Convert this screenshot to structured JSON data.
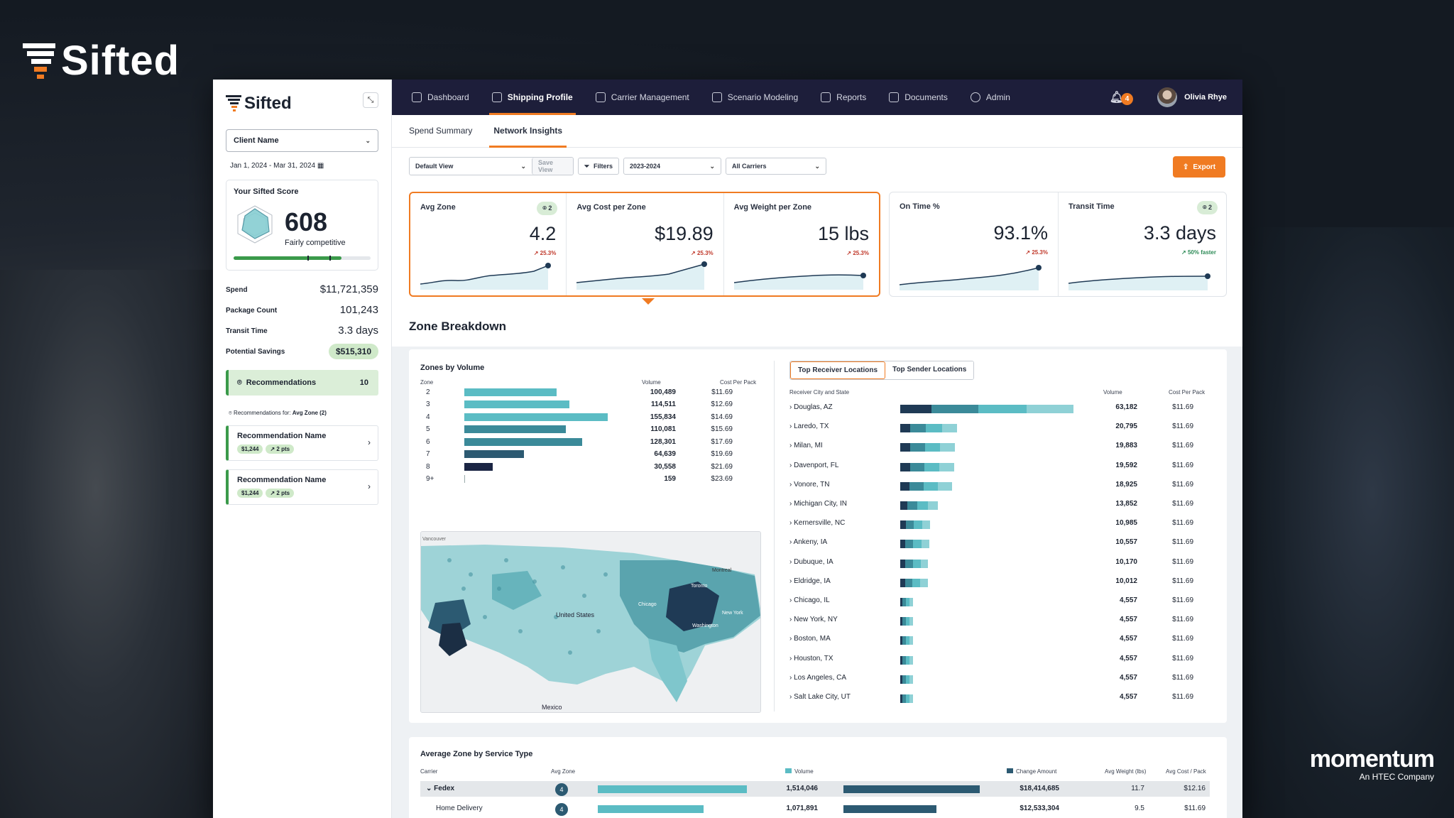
{
  "brand": {
    "name": "Sifted",
    "partner": "momentum",
    "partner_sub": "An HTEC Company"
  },
  "nav": {
    "items": [
      {
        "label": "Dashboard",
        "icon": "grid-icon"
      },
      {
        "label": "Shipping Profile",
        "icon": "bar-chart-icon",
        "active": true
      },
      {
        "label": "Carrier Management",
        "icon": "truck-icon"
      },
      {
        "label": "Scenario Modeling",
        "icon": "cube-icon"
      },
      {
        "label": "Reports",
        "icon": "report-icon"
      },
      {
        "label": "Documents",
        "icon": "document-icon"
      },
      {
        "label": "Admin",
        "icon": "user-icon"
      }
    ],
    "notifications": "4",
    "user": "Olivia Rhye"
  },
  "subtabs": [
    "Spend Summary",
    "Network Insights"
  ],
  "filters": {
    "view": "Default View",
    "save": "Save View",
    "filters": "Filters",
    "period": "2023-2024",
    "carriers": "All Carriers",
    "export": "Export"
  },
  "kpis": [
    {
      "title": "Avg Zone",
      "value": "4.2",
      "delta": "25.3%",
      "pin": "2"
    },
    {
      "title": "Avg Cost per Zone",
      "value": "$19.89",
      "delta": "25.3%"
    },
    {
      "title": "Avg Weight per Zone",
      "value": "15 lbs",
      "delta": "25.3%"
    },
    {
      "title": "On Time %",
      "value": "93.1%",
      "delta": "25.3%"
    },
    {
      "title": "Transit Time",
      "value": "3.3 days",
      "delta": "50% faster",
      "pin": "2"
    }
  ],
  "sidebar": {
    "client": "Client Name",
    "date_range": "Jan 1, 2024 - Mar 31, 2024",
    "score_title": "Your Sifted Score",
    "score": "608",
    "score_label": "Fairly competitive",
    "score_level": 0.79,
    "stats": [
      {
        "label": "Spend",
        "value": "$11,721,359"
      },
      {
        "label": "Package Count",
        "value": "101,243"
      },
      {
        "label": "Transit Time",
        "value": "3.3 days"
      },
      {
        "label": "Potential Savings",
        "value": "$515,310"
      }
    ],
    "recommendations_label": "Recommendations",
    "recommendations_count": "10",
    "rec_for_prefix": "Recommendations for:",
    "rec_for_value": "Avg Zone (2)",
    "rec_cards": [
      {
        "name": "Recommendation Name",
        "amount": "$1,244",
        "pts": "2 pts"
      },
      {
        "name": "Recommendation Name",
        "amount": "$1,244",
        "pts": "2 pts"
      }
    ]
  },
  "zone_breakdown": {
    "title": "Zone Breakdown",
    "zones_title": "Zones by Volume",
    "col_zone": "Zone",
    "col_volume": "Volume",
    "col_cost": "Cost Per Pack",
    "rows": [
      {
        "zone": "2",
        "volume": "100,489",
        "cost": "$11.69",
        "v": 100489
      },
      {
        "zone": "3",
        "volume": "114,511",
        "cost": "$12.69",
        "v": 114511
      },
      {
        "zone": "4",
        "volume": "155,834",
        "cost": "$14.69",
        "v": 155834
      },
      {
        "zone": "5",
        "volume": "110,081",
        "cost": "$15.69",
        "v": 110081
      },
      {
        "zone": "6",
        "volume": "128,301",
        "cost": "$17.69",
        "v": 128301
      },
      {
        "zone": "7",
        "volume": "64,639",
        "cost": "$19.69",
        "v": 64639
      },
      {
        "zone": "8",
        "volume": "30,558",
        "cost": "$21.69",
        "v": 30558
      },
      {
        "zone": "9+",
        "volume": "159",
        "cost": "$23.69",
        "v": 159
      }
    ],
    "map_labels": [
      "United States",
      "Mexico",
      "Vancouver",
      "Montreal",
      "Toronto",
      "New York",
      "Washington",
      "Chicago"
    ],
    "loc_tabs": [
      "Top Receiver Locations",
      "Top Sender Locations"
    ],
    "col_city": "Receiver City and State",
    "col_volume2": "Volume",
    "col_cost2": "Cost Per Pack",
    "locations": [
      {
        "city": "Douglas, AZ",
        "volume": "63,182",
        "v": 63182
      },
      {
        "city": "Laredo, TX",
        "volume": "20,795",
        "v": 20795
      },
      {
        "city": "Milan, MI",
        "volume": "19,883",
        "v": 19883
      },
      {
        "city": "Davenport, FL",
        "volume": "19,592",
        "v": 19592
      },
      {
        "city": "Vonore, TN",
        "volume": "18,925",
        "v": 18925
      },
      {
        "city": "Michigan City, IN",
        "volume": "13,852",
        "v": 13852
      },
      {
        "city": "Kernersville, NC",
        "volume": "10,985",
        "v": 10985
      },
      {
        "city": "Ankeny, IA",
        "volume": "10,557",
        "v": 10557
      },
      {
        "city": "Dubuque, IA",
        "volume": "10,170",
        "v": 10170
      },
      {
        "city": "Eldridge, IA",
        "volume": "10,012",
        "v": 10012
      },
      {
        "city": "Chicago, IL",
        "volume": "4,557",
        "v": 4557
      },
      {
        "city": "New York, NY",
        "volume": "4,557",
        "v": 4557
      },
      {
        "city": "Boston, MA",
        "volume": "4,557",
        "v": 4557
      },
      {
        "city": "Houston, TX",
        "volume": "4,557",
        "v": 4557
      },
      {
        "city": "Los Angeles, CA",
        "volume": "4,557",
        "v": 4557
      },
      {
        "city": "Salt Lake City, UT",
        "volume": "4,557",
        "v": 4557
      }
    ],
    "loc_cost": "$11.69"
  },
  "service": {
    "title": "Average Zone by Service Type",
    "cols": [
      "Carrier",
      "Avg Zone",
      "Volume",
      "Change Amount",
      "Avg Weight (lbs)",
      "Avg Cost / Pack"
    ],
    "rows": [
      {
        "name": "Fedex",
        "zone": "4",
        "volume": "1,514,046",
        "change": "$18,414,685",
        "weight": "11.7",
        "cost": "$12.16",
        "vv": 1514046,
        "cv": 18414685
      },
      {
        "name": "Home Delivery",
        "zone": "4",
        "volume": "1,071,891",
        "change": "$12,533,304",
        "weight": "9.5",
        "cost": "$11.69",
        "vv": 1071891,
        "cv": 12533304
      }
    ]
  },
  "colors": {
    "accent": "#f07b22",
    "nav": "#1d1e3a",
    "green": "#3a9a4a",
    "teal1": "#5bbcc4",
    "teal2": "#3b8a99",
    "navy": "#1f3a55"
  }
}
